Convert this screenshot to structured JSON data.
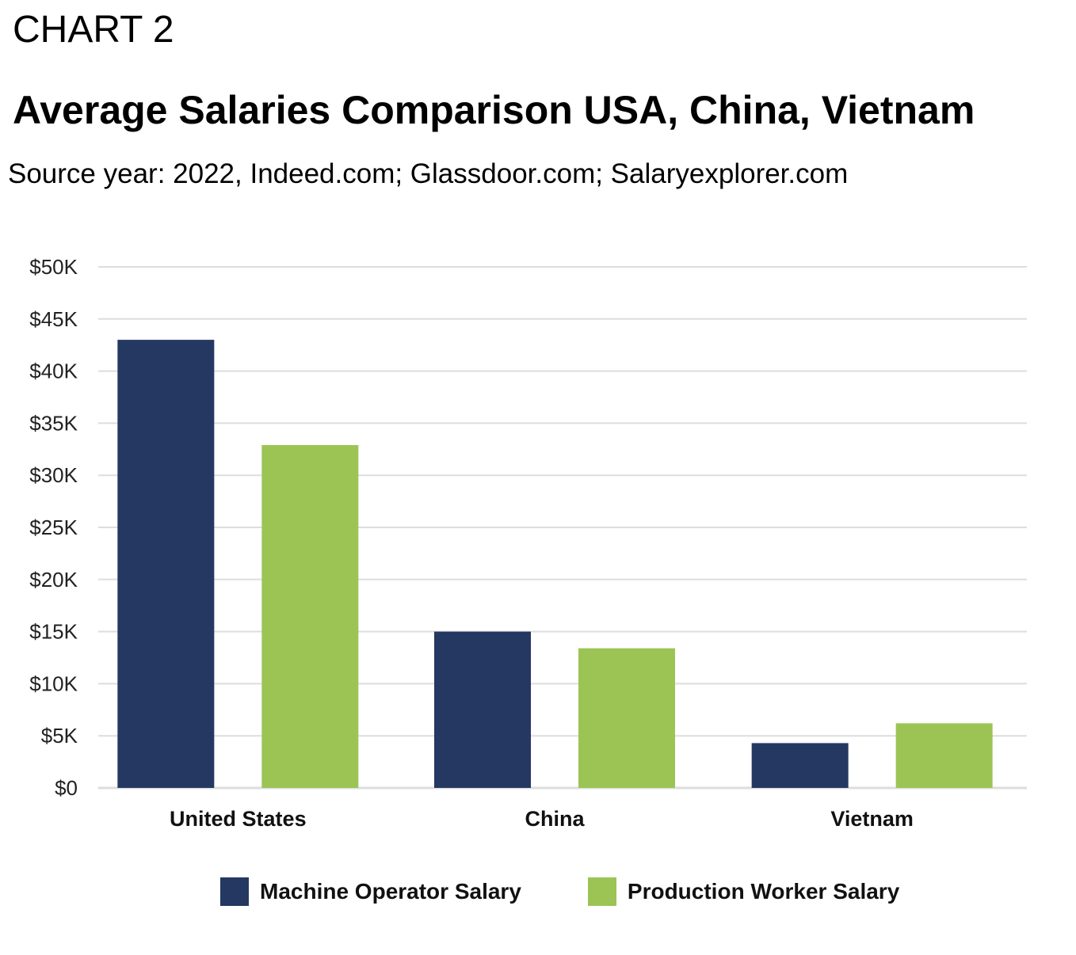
{
  "header": {
    "chart_number": "CHART 2",
    "title": "Average Salaries Comparison USA, China, Vietnam",
    "source": "Source year: 2022, Indeed.com; Glassdoor.com; Salaryexplorer.com"
  },
  "chart_data": {
    "type": "bar",
    "title": "Average Salaries Comparison USA, China, Vietnam",
    "categories": [
      "United States",
      "China",
      "Vietnam"
    ],
    "series": [
      {
        "name": "Machine Operator Salary",
        "values": [
          43000,
          15000,
          4300
        ],
        "color": "#253861"
      },
      {
        "name": "Production Worker Salary",
        "values": [
          32900,
          13400,
          6200
        ],
        "color": "#9bc455"
      }
    ],
    "xlabel": "",
    "ylabel": "",
    "ylim": [
      0,
      50000
    ],
    "y_ticks": [
      {
        "value": 0,
        "label": "$0"
      },
      {
        "value": 5000,
        "label": "$5K"
      },
      {
        "value": 10000,
        "label": "$10K"
      },
      {
        "value": 15000,
        "label": "$15K"
      },
      {
        "value": 20000,
        "label": "$20K"
      },
      {
        "value": 25000,
        "label": "$25K"
      },
      {
        "value": 30000,
        "label": "$30K"
      },
      {
        "value": 35000,
        "label": "$35K"
      },
      {
        "value": 40000,
        "label": "$40K"
      },
      {
        "value": 45000,
        "label": "$45K"
      },
      {
        "value": 50000,
        "label": "$50K"
      }
    ],
    "grid": true,
    "grid_color": "#dddddd",
    "legend_position": "bottom"
  }
}
